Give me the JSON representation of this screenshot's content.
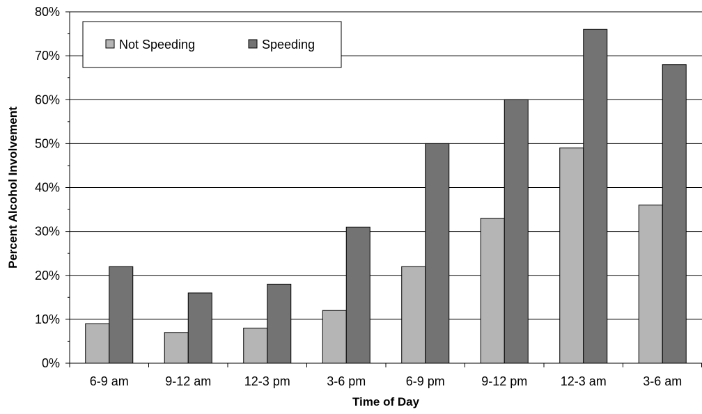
{
  "chart_data": {
    "type": "bar",
    "title": "",
    "xlabel": "Time of Day",
    "ylabel": "Percent Alcohol Involvement",
    "categories": [
      "6-9 am",
      "9-12 am",
      "12-3 pm",
      "3-6 pm",
      "6-9 pm",
      "9-12 pm",
      "12-3 am",
      "3-6 am"
    ],
    "series": [
      {
        "name": "Not Speeding",
        "values": [
          9,
          7,
          8,
          12,
          22,
          33,
          49,
          36
        ],
        "color": "#b5b5b5"
      },
      {
        "name": "Speeding",
        "values": [
          22,
          16,
          18,
          31,
          50,
          60,
          76,
          68
        ],
        "color": "#737373"
      }
    ],
    "ylim": [
      0,
      80
    ],
    "yticks": [
      "0%",
      "10%",
      "20%",
      "30%",
      "40%",
      "50%",
      "60%",
      "70%",
      "80%"
    ],
    "grid": true,
    "legend_position": "top-left"
  }
}
